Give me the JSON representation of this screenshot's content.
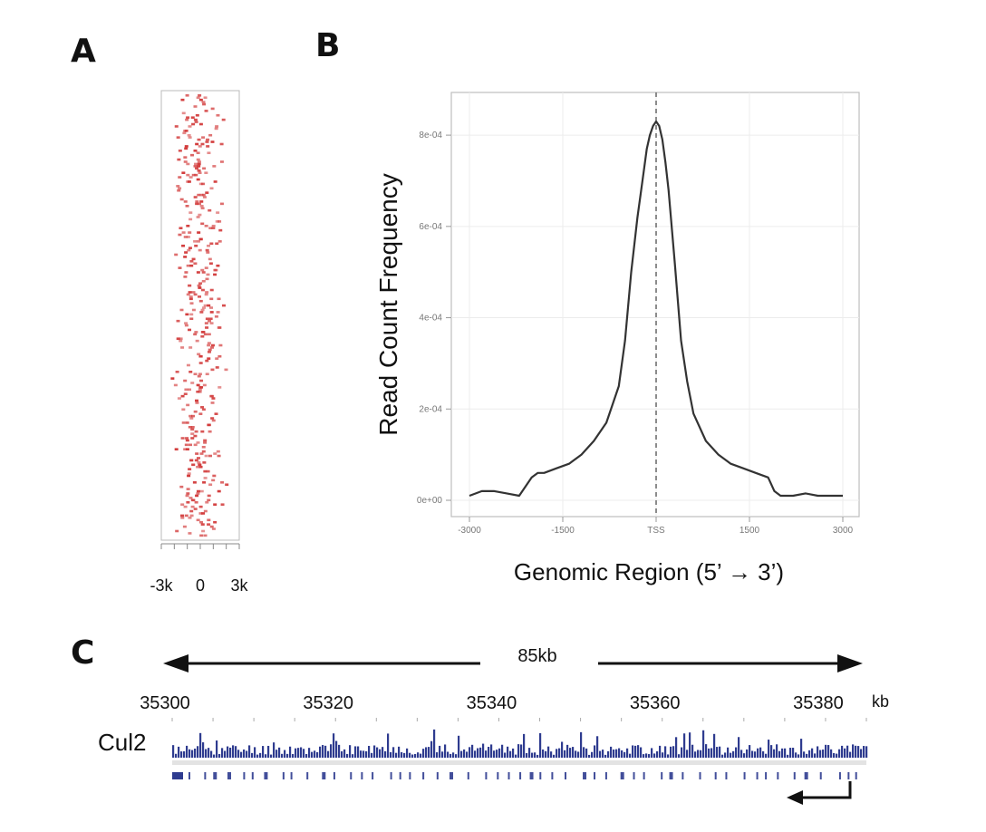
{
  "panels": {
    "a": "A",
    "b": "B",
    "c": "C"
  },
  "chart_data": [
    {
      "id": "A",
      "type": "heatmap",
      "description_ticks": [
        "-3k",
        "0",
        "3k"
      ],
      "x_range": [
        -3000,
        3000
      ],
      "x_ticks": [
        -3000,
        -2000,
        -1000,
        0,
        1000,
        2000,
        3000
      ],
      "tick_labels": [
        "-3k",
        "0",
        "3k"
      ],
      "tick_label_positions": [
        -3000,
        0,
        3000
      ],
      "rows": 200,
      "point_color": "#d23a3a",
      "grid": false
    },
    {
      "id": "B",
      "type": "line",
      "title": "",
      "xlabel": "Genomic Region (5’ → 3’)",
      "ylabel": "Read Count Frequency",
      "xlim": [
        -3000,
        3000
      ],
      "ylim": [
        0,
        0.00083
      ],
      "x_ticks": [
        -3000,
        -1500,
        0,
        1500,
        3000
      ],
      "x_tick_labels": [
        "-3000",
        "-1500",
        "TSS",
        "1500",
        "3000"
      ],
      "y_ticks": [
        0,
        0.0002,
        0.0004,
        0.0006,
        0.0008
      ],
      "y_tick_labels": [
        "0e+00",
        "2e-04",
        "4e-04",
        "6e-04",
        "8e-04"
      ],
      "vline_x": 0,
      "grid": true,
      "line_color": "#333333",
      "series": [
        {
          "x": [
            -3000,
            -2800,
            -2600,
            -2400,
            -2200,
            -2000,
            -1900,
            -1800,
            -1600,
            -1400,
            -1200,
            -1000,
            -800,
            -600,
            -500,
            -400,
            -300,
            -200,
            -150,
            -100,
            -50,
            0,
            50,
            100,
            150,
            200,
            300,
            400,
            500,
            600,
            800,
            1000,
            1200,
            1400,
            1600,
            1800,
            1900,
            2000,
            2200,
            2400,
            2600,
            2800,
            3000
          ],
          "y": [
            1e-05,
            2e-05,
            2e-05,
            1.5e-05,
            1e-05,
            5e-05,
            6e-05,
            6e-05,
            7e-05,
            8e-05,
            0.0001,
            0.00013,
            0.00017,
            0.00025,
            0.00035,
            0.0005,
            0.00062,
            0.00072,
            0.00077,
            0.0008,
            0.00082,
            0.00083,
            0.00082,
            0.00079,
            0.00074,
            0.00068,
            0.00052,
            0.00035,
            0.00026,
            0.00019,
            0.00013,
            0.0001,
            8e-05,
            7e-05,
            6e-05,
            5e-05,
            2e-05,
            1e-05,
            1e-05,
            1.5e-05,
            1e-05,
            1e-05,
            1e-05
          ]
        }
      ]
    },
    {
      "id": "C",
      "type": "bar",
      "scale_label": "85kb",
      "track_name": "Cul2",
      "unit_label": "kb",
      "x_ticks": [
        35300,
        35320,
        35340,
        35360,
        35380
      ],
      "x_tick_labels": [
        "35300",
        "35320",
        "35340",
        "35360",
        "35380"
      ],
      "xlim": [
        35300,
        35385
      ],
      "bar_color": "#2e3b8f",
      "strand": "minus"
    }
  ]
}
